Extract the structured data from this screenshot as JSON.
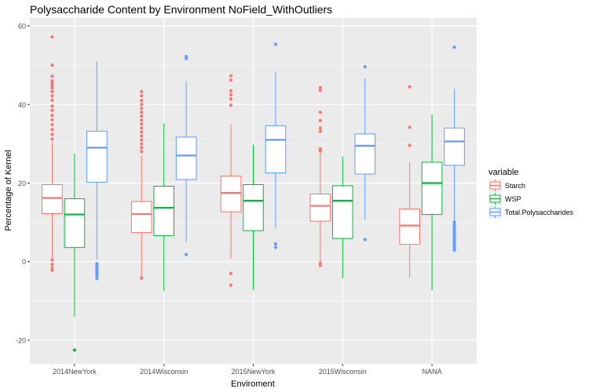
{
  "chart_data": {
    "type": "boxplot",
    "title": "Polysaccharide Content by Environment NoField_WithOutliers",
    "xlabel": "Enviroment",
    "ylabel": "Percentage of Kernel",
    "ylim": [
      -26,
      62
    ],
    "yticks": [
      -20,
      0,
      20,
      40,
      60
    ],
    "grid": true,
    "legend_position": "right",
    "legend_title": "variable",
    "categories": [
      "2014NewYork",
      "2014Wisconsin",
      "2015NewYork",
      "2015Wisconsin",
      "NANA"
    ],
    "series": [
      {
        "name": "Starch",
        "color": "#F8766D",
        "boxes": [
          {
            "whislo": 0.5,
            "q1": 12.2,
            "med": 16.2,
            "q3": 19.6,
            "whishi": 30.3,
            "fliers": [
              57.2,
              50.0,
              47.2,
              46.0,
              45.5,
              44.8,
              44.2,
              43.3,
              42.2,
              41.1,
              39.6,
              38.5,
              37.2,
              36.1,
              34.9,
              33.6,
              32.4,
              31.2,
              0.4,
              -0.7,
              -1.6,
              -2.2
            ]
          },
          {
            "whislo": -3.8,
            "q1": 7.4,
            "med": 12.1,
            "q3": 15.3,
            "whishi": 27.0,
            "fliers": [
              43.3,
              42.2,
              41.0,
              40.0,
              39.0,
              38.0,
              37.0,
              36.0,
              35.0,
              34.0,
              33.0,
              32.0,
              31.0,
              30.0,
              29.0,
              28.0,
              -4.2
            ]
          },
          {
            "whislo": 0.7,
            "q1": 12.7,
            "med": 17.5,
            "q3": 21.8,
            "whishi": 35.0,
            "fliers": [
              47.3,
              46.2,
              43.5,
              42.5,
              41.4,
              39.8,
              -3.0,
              -6.0
            ]
          },
          {
            "whislo": -0.5,
            "q1": 10.3,
            "med": 14.2,
            "q3": 17.2,
            "whishi": 27.5,
            "fliers": [
              44.3,
              43.6,
              38.0,
              35.9,
              34.0,
              33.2,
              28.7,
              28.1,
              -0.4,
              -1.0
            ]
          },
          {
            "whislo": -4.0,
            "q1": 4.4,
            "med": 9.2,
            "q3": 13.4,
            "whishi": 25.3,
            "fliers": [
              44.5,
              34.2,
              29.6
            ]
          }
        ]
      },
      {
        "name": "WSP",
        "color": "#00BA38",
        "boxes": [
          {
            "whislo": -14.0,
            "q1": 3.6,
            "med": 12.0,
            "q3": 16.0,
            "whishi": 27.5,
            "fliers": [
              -22.5
            ]
          },
          {
            "whislo": -7.5,
            "q1": 6.6,
            "med": 13.7,
            "q3": 19.2,
            "whishi": 35.2,
            "fliers": []
          },
          {
            "whislo": -7.2,
            "q1": 7.9,
            "med": 15.5,
            "q3": 19.6,
            "whishi": 29.8,
            "fliers": []
          },
          {
            "whislo": -4.2,
            "q1": 5.9,
            "med": 15.5,
            "q3": 19.3,
            "whishi": 26.8,
            "fliers": []
          },
          {
            "whislo": -7.3,
            "q1": 12.0,
            "med": 20.0,
            "q3": 25.3,
            "whishi": 37.5,
            "fliers": []
          }
        ]
      },
      {
        "name": "Total.Polysaccharides",
        "color": "#619CFF",
        "boxes": [
          {
            "whislo": 0.5,
            "q1": 20.2,
            "med": 29.0,
            "q3": 33.2,
            "whishi": 51.0,
            "fliers": [
              -0.5,
              -1.0,
              -1.5,
              -2.0,
              -2.5,
              -3.0,
              -3.5,
              -4.3
            ]
          },
          {
            "whislo": 5.0,
            "q1": 20.9,
            "med": 27.0,
            "q3": 31.7,
            "whishi": 46.0,
            "fliers": [
              52.2,
              51.7,
              1.8
            ]
          },
          {
            "whislo": 8.4,
            "q1": 22.6,
            "med": 31.0,
            "q3": 34.6,
            "whishi": 48.2,
            "fliers": [
              55.3,
              4.5,
              3.6
            ]
          },
          {
            "whislo": 10.8,
            "q1": 22.3,
            "med": 29.5,
            "q3": 32.5,
            "whishi": 46.6,
            "fliers": [
              49.6,
              5.6
            ]
          },
          {
            "whislo": 10.3,
            "q1": 24.5,
            "med": 30.6,
            "q3": 34.0,
            "whishi": 44.0,
            "fliers": [
              54.6,
              10.0,
              9.4,
              8.9,
              8.4,
              7.9,
              7.4,
              6.9,
              6.4,
              5.9,
              5.4,
              4.9,
              4.4,
              3.9,
              3.4,
              2.9
            ]
          }
        ]
      }
    ]
  }
}
